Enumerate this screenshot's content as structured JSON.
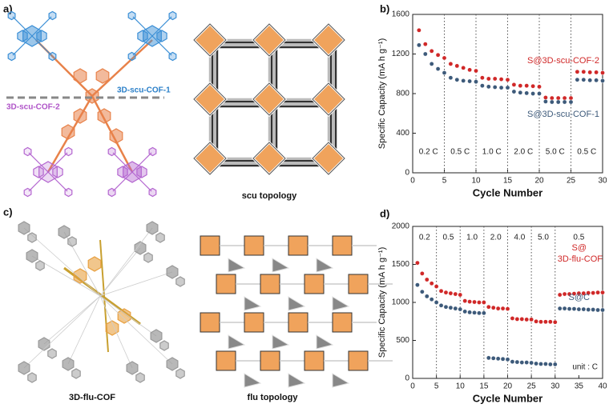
{
  "figure": {
    "panel_labels": [
      "a)",
      "b)",
      "c)",
      "d)"
    ],
    "scu_labels": [
      "3D-scu-COF-1",
      "3D-scu-COF-2"
    ],
    "captions": [
      "scu topology",
      "3D-flu-COF",
      "flu topology"
    ]
  },
  "chart_data": [
    {
      "type": "scatter",
      "x_label": "Cycle Number",
      "y_label": "Specific Capacity (mA h g⁻¹)",
      "x": [
        1,
        2,
        3,
        4,
        5,
        6,
        7,
        8,
        9,
        10,
        11,
        12,
        13,
        14,
        15,
        16,
        17,
        18,
        19,
        20,
        21,
        22,
        23,
        24,
        25,
        26,
        27,
        28,
        29,
        30
      ],
      "xlim": [
        0,
        30
      ],
      "xticks": [
        0,
        5,
        10,
        15,
        20,
        25,
        30
      ],
      "ylim": [
        0,
        1600
      ],
      "yticks": [
        0,
        400,
        800,
        1200,
        1600
      ],
      "dividers": [
        5,
        10,
        15,
        20,
        25
      ],
      "rate_labels": [
        "0.2 C",
        "0.5 C",
        "1.0 C",
        "2.0 C",
        "5.0 C",
        "0.5 C"
      ],
      "series": [
        {
          "name": "S@3D-scu-COF-2",
          "color": "#d02828",
          "values": [
            1440,
            1300,
            1230,
            1190,
            1160,
            1100,
            1080,
            1060,
            1040,
            1030,
            960,
            950,
            950,
            945,
            940,
            890,
            880,
            880,
            875,
            870,
            760,
            755,
            755,
            755,
            755,
            1020,
            1020,
            1015,
            1015,
            1010
          ]
        },
        {
          "name": "S@3D-scu-COF-1",
          "color": "#3d5a7a",
          "values": [
            1290,
            1200,
            1100,
            1050,
            1010,
            960,
            940,
            930,
            925,
            920,
            880,
            870,
            865,
            860,
            860,
            820,
            810,
            805,
            800,
            800,
            720,
            715,
            715,
            715,
            715,
            940,
            940,
            935,
            935,
            930
          ]
        }
      ]
    },
    {
      "type": "scatter",
      "x_label": "Cycle Number",
      "y_label": "Specific Capacity (mA h g⁻¹)",
      "x": [
        1,
        2,
        3,
        4,
        5,
        6,
        7,
        8,
        9,
        10,
        11,
        12,
        13,
        14,
        15,
        16,
        17,
        18,
        19,
        20,
        21,
        22,
        23,
        24,
        25,
        26,
        27,
        28,
        29,
        30,
        31,
        32,
        33,
        34,
        35,
        36,
        37,
        38,
        39,
        40
      ],
      "xlim": [
        0,
        40
      ],
      "xticks": [
        0,
        5,
        10,
        15,
        20,
        25,
        30,
        35,
        40
      ],
      "ylim": [
        0,
        2000
      ],
      "yticks": [
        0,
        500,
        1000,
        1500,
        2000
      ],
      "dividers": [
        5,
        10,
        15,
        20,
        25,
        30
      ],
      "rate_labels": [
        "0.2",
        "0.5",
        "1.0",
        "2.0",
        "4.0",
        "5.0",
        "0.5"
      ],
      "annotation": "unit : C",
      "series": [
        {
          "name": [
            "S@",
            "3D-flu-COF"
          ],
          "color": "#d02828",
          "values": [
            1520,
            1380,
            1300,
            1250,
            1210,
            1150,
            1130,
            1120,
            1110,
            1100,
            1020,
            1010,
            1005,
            1000,
            1000,
            940,
            930,
            920,
            920,
            915,
            790,
            780,
            780,
            775,
            775,
            750,
            745,
            745,
            745,
            740,
            1100,
            1110,
            1110,
            1115,
            1120,
            1120,
            1125,
            1125,
            1130,
            1130
          ]
        },
        {
          "name": "S@C",
          "color": "#3d5a7a",
          "values": [
            1230,
            1140,
            1080,
            1040,
            1000,
            960,
            940,
            930,
            920,
            910,
            880,
            870,
            865,
            860,
            860,
            270,
            265,
            260,
            255,
            250,
            220,
            215,
            210,
            210,
            205,
            195,
            190,
            190,
            185,
            185,
            920,
            920,
            915,
            915,
            910,
            910,
            905,
            905,
            900,
            900
          ]
        }
      ]
    }
  ]
}
